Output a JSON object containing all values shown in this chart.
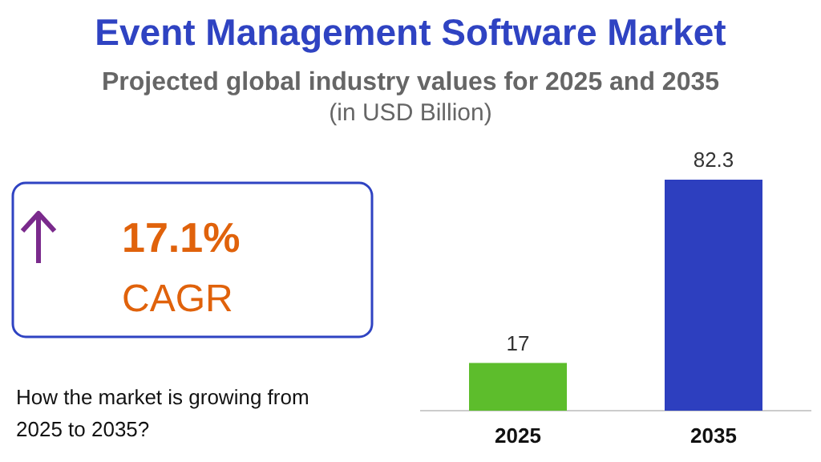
{
  "chart_data": {
    "type": "bar",
    "title": "Event Management Software Market",
    "subtitle": "Projected global industry values for 2025 and 2035\n(in USD Billion)",
    "categories": [
      "2025",
      "2035"
    ],
    "values": [
      17,
      82.3
    ],
    "colors": [
      "#5dbd2c",
      "#2d3fbf"
    ],
    "data_labels": true,
    "annotations": [
      "17.1%",
      "CAGR",
      "How the market is growing from 2025 to 2035?"
    ]
  }
}
